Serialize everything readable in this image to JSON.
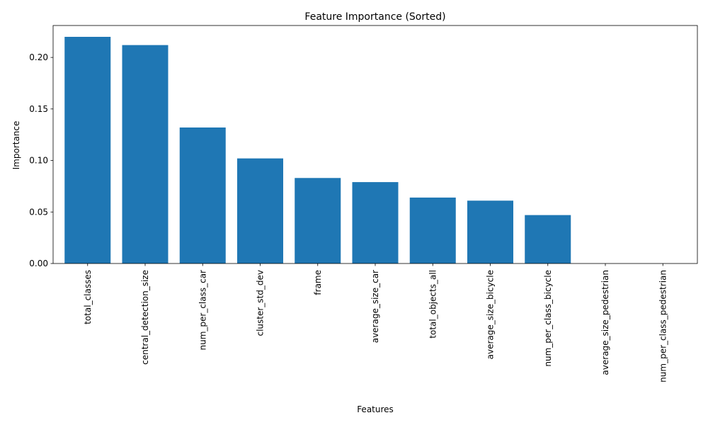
{
  "chart_data": {
    "type": "bar",
    "title": "Feature Importance (Sorted)",
    "xlabel": "Features",
    "ylabel": "Importance",
    "categories": [
      "total_classes",
      "central_detection_size",
      "num_per_class_car",
      "cluster_std_dev",
      "frame",
      "average_size_car",
      "total_objects_all",
      "average_size_bicycle",
      "num_per_class_bicycle",
      "average_size_pedestrian",
      "num_per_class_pedestrian"
    ],
    "values": [
      0.22,
      0.212,
      0.132,
      0.102,
      0.083,
      0.079,
      0.064,
      0.061,
      0.047,
      0.0,
      0.0
    ],
    "ylim": [
      0,
      0.231
    ],
    "yticks": [
      0.0,
      0.05,
      0.1,
      0.15,
      0.2
    ],
    "ytick_labels": [
      "0.00",
      "0.05",
      "0.10",
      "0.15",
      "0.20"
    ],
    "grid": false,
    "legend": "none",
    "bar_color": "#1f77b4"
  }
}
